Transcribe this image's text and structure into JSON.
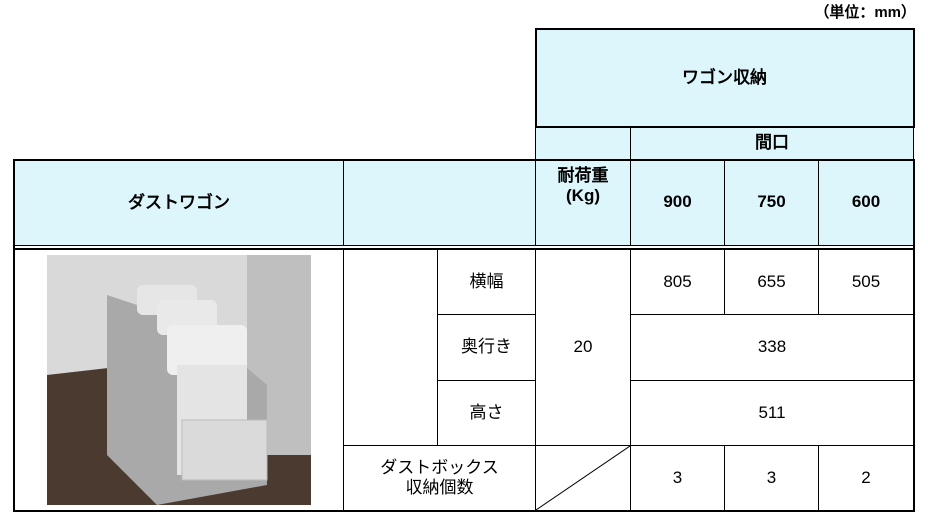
{
  "unit": "（単位：mm）",
  "table": {
    "group_header": "ワゴン収納",
    "frontage_header": "間口",
    "product_header": "ダストワゴン",
    "load_header": "耐荷重",
    "load_unit": "(Kg)",
    "widths": [
      900,
      750,
      600
    ],
    "load_capacity": 20,
    "rows": [
      {
        "label": "横幅",
        "values": [
          805,
          655,
          505
        ]
      },
      {
        "label": "奥行き",
        "value": 338
      },
      {
        "label": "高さ",
        "value": 511
      }
    ],
    "box_row": {
      "label_line1": "ダストボックス",
      "label_line2": "収納個数",
      "values": [
        3,
        3,
        2
      ]
    }
  }
}
